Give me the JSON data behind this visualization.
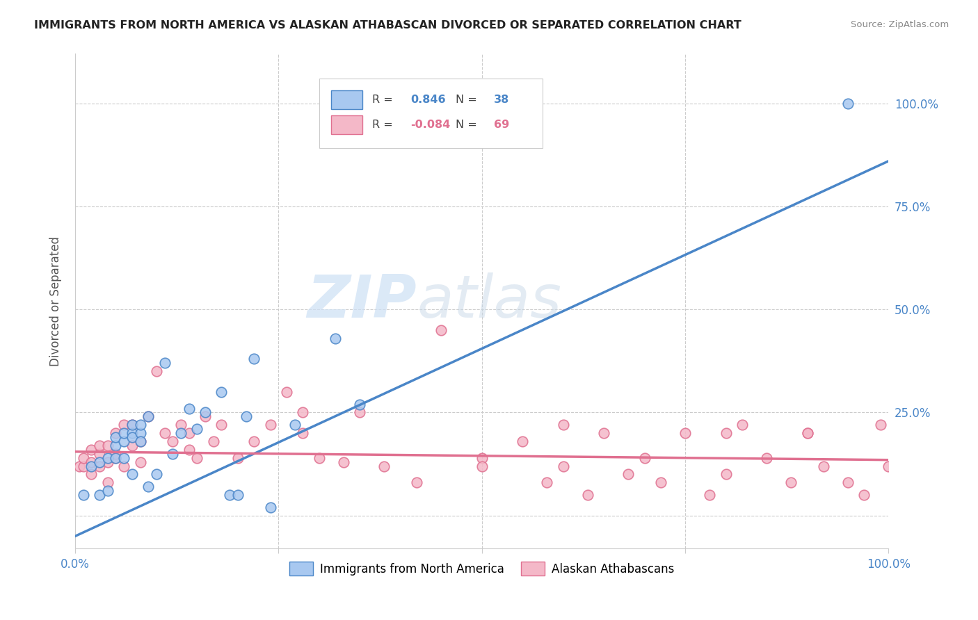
{
  "title": "IMMIGRANTS FROM NORTH AMERICA VS ALASKAN ATHABASCAN DIVORCED OR SEPARATED CORRELATION CHART",
  "source": "Source: ZipAtlas.com",
  "ylabel": "Divorced or Separated",
  "xlim": [
    0.0,
    1.0
  ],
  "ylim": [
    -0.08,
    1.12
  ],
  "yticks": [
    0.0,
    0.25,
    0.5,
    0.75,
    1.0
  ],
  "legend_blue_r": "0.846",
  "legend_blue_n": "38",
  "legend_pink_r": "-0.084",
  "legend_pink_n": "69",
  "blue_color": "#a8c8f0",
  "pink_color": "#f4b8c8",
  "blue_line_color": "#4a86c8",
  "pink_line_color": "#e07090",
  "watermark_zip": "ZIP",
  "watermark_atlas": "atlas",
  "blue_line_x0": 0.0,
  "blue_line_y0": -0.05,
  "blue_line_x1": 1.0,
  "blue_line_y1": 0.86,
  "pink_line_x0": 0.0,
  "pink_line_y0": 0.155,
  "pink_line_x1": 1.0,
  "pink_line_y1": 0.135,
  "blue_scatter_x": [
    0.01,
    0.02,
    0.03,
    0.03,
    0.04,
    0.04,
    0.05,
    0.05,
    0.05,
    0.06,
    0.06,
    0.06,
    0.07,
    0.07,
    0.07,
    0.07,
    0.08,
    0.08,
    0.08,
    0.09,
    0.09,
    0.1,
    0.11,
    0.12,
    0.13,
    0.14,
    0.15,
    0.16,
    0.18,
    0.19,
    0.2,
    0.21,
    0.22,
    0.24,
    0.27,
    0.32,
    0.35,
    0.95
  ],
  "blue_scatter_y": [
    0.05,
    0.12,
    0.13,
    0.05,
    0.14,
    0.06,
    0.14,
    0.17,
    0.19,
    0.18,
    0.2,
    0.14,
    0.2,
    0.19,
    0.22,
    0.1,
    0.2,
    0.22,
    0.18,
    0.24,
    0.07,
    0.1,
    0.37,
    0.15,
    0.2,
    0.26,
    0.21,
    0.25,
    0.3,
    0.05,
    0.05,
    0.24,
    0.38,
    0.02,
    0.22,
    0.43,
    0.27,
    1.0
  ],
  "pink_scatter_x": [
    0.005,
    0.01,
    0.01,
    0.02,
    0.02,
    0.02,
    0.03,
    0.03,
    0.03,
    0.04,
    0.04,
    0.04,
    0.05,
    0.05,
    0.05,
    0.06,
    0.06,
    0.07,
    0.07,
    0.08,
    0.08,
    0.09,
    0.1,
    0.11,
    0.12,
    0.13,
    0.14,
    0.14,
    0.15,
    0.16,
    0.17,
    0.18,
    0.2,
    0.22,
    0.24,
    0.26,
    0.28,
    0.3,
    0.33,
    0.38,
    0.42,
    0.45,
    0.5,
    0.55,
    0.58,
    0.6,
    0.63,
    0.65,
    0.68,
    0.7,
    0.72,
    0.75,
    0.78,
    0.8,
    0.82,
    0.85,
    0.88,
    0.9,
    0.92,
    0.95,
    0.97,
    0.99,
    1.0,
    0.5,
    0.28,
    0.35,
    0.6,
    0.8,
    0.9
  ],
  "pink_scatter_y": [
    0.12,
    0.12,
    0.14,
    0.13,
    0.1,
    0.16,
    0.15,
    0.12,
    0.17,
    0.13,
    0.17,
    0.08,
    0.14,
    0.2,
    0.15,
    0.22,
    0.12,
    0.17,
    0.22,
    0.18,
    0.13,
    0.24,
    0.35,
    0.2,
    0.18,
    0.22,
    0.16,
    0.2,
    0.14,
    0.24,
    0.18,
    0.22,
    0.14,
    0.18,
    0.22,
    0.3,
    0.2,
    0.14,
    0.13,
    0.12,
    0.08,
    0.45,
    0.14,
    0.18,
    0.08,
    0.12,
    0.05,
    0.2,
    0.1,
    0.14,
    0.08,
    0.2,
    0.05,
    0.1,
    0.22,
    0.14,
    0.08,
    0.2,
    0.12,
    0.08,
    0.05,
    0.22,
    0.12,
    0.12,
    0.25,
    0.25,
    0.22,
    0.2,
    0.2
  ]
}
